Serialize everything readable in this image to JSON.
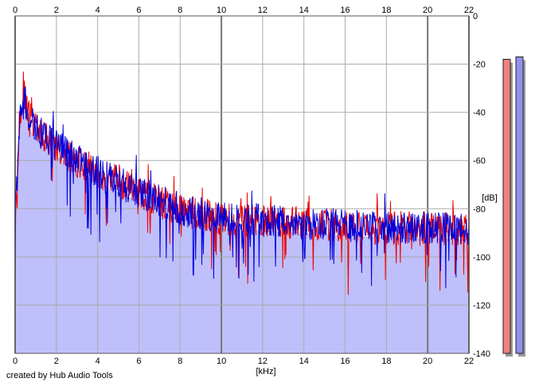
{
  "credit": "created by Hub Audio Tools",
  "colors": {
    "left_channel": "#ee0000",
    "right_channel": "#0000dd",
    "fill": "#bfbffb",
    "grid": "#aaaaaa",
    "meter_left": "#f08080",
    "meter_right": "#9090f0"
  },
  "chart_data": {
    "type": "line",
    "xlabel": "[kHz]",
    "ylabel": "[dB]",
    "xlim": [
      0,
      22
    ],
    "ylim": [
      -140,
      0
    ],
    "x_ticks": [
      "0",
      "2",
      "4",
      "6",
      "8",
      "10",
      "12",
      "14",
      "16",
      "18",
      "20",
      "22"
    ],
    "y_ticks": [
      "0",
      "-20",
      "-40",
      "-60",
      "-80",
      "-100",
      "-120",
      "-140"
    ],
    "grid": true,
    "filled_under_curve": true,
    "envelope": {
      "x": [
        0,
        0.2,
        0.4,
        0.6,
        0.8,
        1,
        1.5,
        2,
        2.5,
        3,
        4,
        5,
        6,
        7,
        8,
        9,
        10,
        12,
        14,
        16,
        18,
        20,
        22
      ],
      "y": [
        -90,
        -45,
        -30,
        -40,
        -44,
        -47,
        -50,
        -54,
        -57,
        -60,
        -65,
        -69,
        -73,
        -77,
        -80,
        -82,
        -84,
        -85,
        -86,
        -87,
        -88,
        -88,
        -89
      ]
    },
    "series": [
      {
        "color": "#ee0000"
      },
      {
        "color": "#0000dd"
      }
    ],
    "level_meters": [
      {
        "color": "#f08080",
        "value_db": -18
      },
      {
        "color": "#9090f0",
        "value_db": -17
      }
    ]
  }
}
